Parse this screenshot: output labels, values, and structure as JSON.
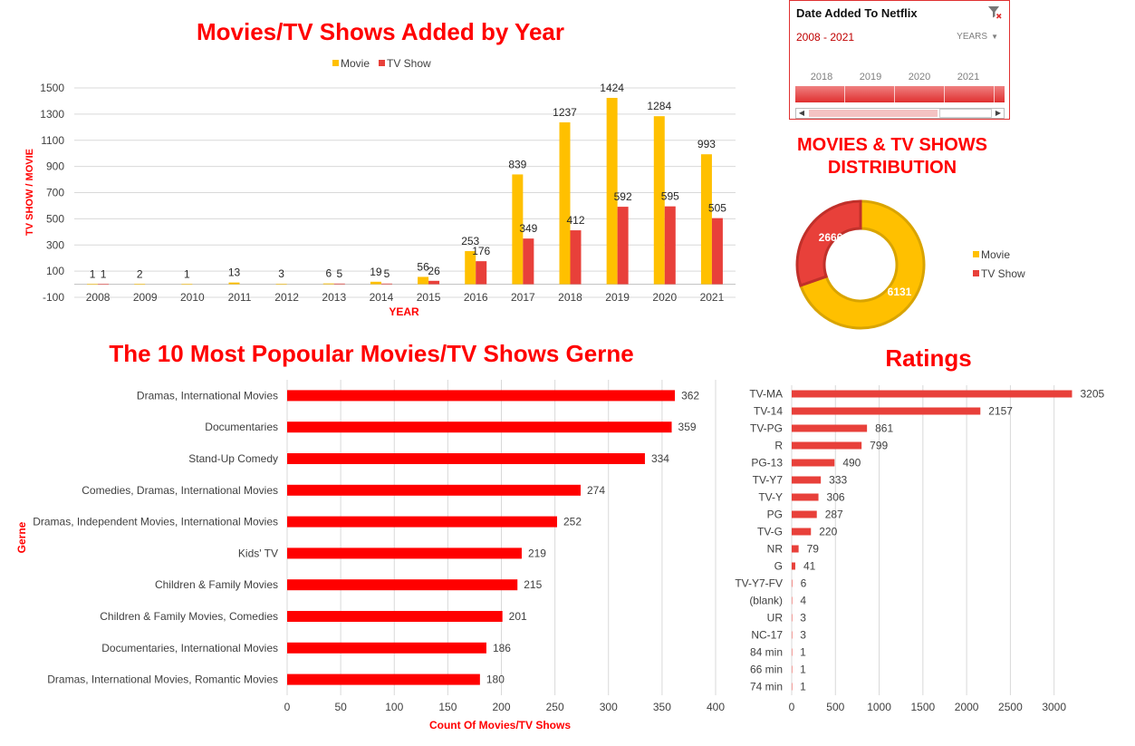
{
  "colors": {
    "movie": "#ffc000",
    "tvshow": "#e8403a",
    "title": "#ff0000",
    "bar_red": "#ff0000",
    "ratings_bar": "#e8403a"
  },
  "year_chart": {
    "title": "Movies/TV Shows Added by Year",
    "legend": [
      "Movie",
      "TV Show"
    ],
    "ylabel": "TV SHOW / MOVIE",
    "xlabel": "YEAR",
    "yticks": [
      "1500",
      "1300",
      "1100",
      "900",
      "700",
      "500",
      "300",
      "100",
      "-100"
    ]
  },
  "slicer": {
    "header": "Date Added To Netflix",
    "range": "2008 - 2021",
    "unit": "YEARS",
    "years": [
      "2018",
      "2019",
      "2020",
      "2021"
    ],
    "filter_icon": "clear-filter-icon"
  },
  "donut": {
    "title_line1": "MOVIES & TV SHOWS",
    "title_line2": "DISTRIBUTION",
    "legend": [
      "Movie",
      "TV Show"
    ]
  },
  "genre_chart": {
    "title": "The 10 Most Popoular Movies/TV Shows Gerne",
    "ylabel": "Gerne",
    "xlabel": "Count Of Movies/TV Shows"
  },
  "ratings_chart": {
    "title": "Ratings"
  },
  "chart_data": [
    {
      "type": "bar",
      "title": "Movies/TV Shows Added by Year",
      "xlabel": "YEAR",
      "ylabel": "TV SHOW / MOVIE",
      "ylim": [
        -100,
        1500
      ],
      "legend": "top-center",
      "categories": [
        "2008",
        "2009",
        "2010",
        "2011",
        "2012",
        "2013",
        "2014",
        "2015",
        "2016",
        "2017",
        "2018",
        "2019",
        "2020",
        "2021"
      ],
      "series": [
        {
          "name": "Movie",
          "values": [
            1,
            2,
            1,
            13,
            3,
            6,
            19,
            56,
            253,
            839,
            1237,
            1424,
            1284,
            993
          ]
        },
        {
          "name": "TV Show",
          "values": [
            1,
            null,
            null,
            null,
            null,
            5,
            5,
            26,
            176,
            349,
            412,
            592,
            595,
            505
          ]
        }
      ],
      "labels": {
        "Movie": [
          "1",
          "2",
          "1",
          "13",
          "3",
          "6",
          "19",
          "56",
          "253",
          "839",
          "1237",
          "1424",
          "1284",
          "993"
        ],
        "TV Show": [
          "1",
          "",
          "",
          "",
          "",
          "5",
          "5",
          "26",
          "176",
          "349",
          "412",
          "592",
          "595",
          "505"
        ]
      }
    },
    {
      "type": "pie",
      "title": "MOVIES & TV SHOWS DISTRIBUTION",
      "legend": "right",
      "slices": [
        {
          "name": "Movie",
          "value": 6131
        },
        {
          "name": "TV Show",
          "value": 2666
        }
      ]
    },
    {
      "type": "bar",
      "orientation": "horizontal",
      "title": "The 10 Most Popoular Movies/TV Shows Gerne",
      "xlabel": "Count Of Movies/TV Shows",
      "ylabel": "Gerne",
      "xlim": [
        0,
        400
      ],
      "xticks": [
        0,
        50,
        100,
        150,
        200,
        250,
        300,
        350,
        400
      ],
      "categories": [
        "Dramas, International Movies",
        "Documentaries",
        "Stand-Up Comedy",
        "Comedies, Dramas, International Movies",
        "Dramas, Independent Movies, International Movies",
        "Kids' TV",
        "Children & Family Movies",
        "Children & Family Movies, Comedies",
        "Documentaries, International Movies",
        "Dramas, International Movies, Romantic Movies"
      ],
      "values": [
        362,
        359,
        334,
        274,
        252,
        219,
        215,
        201,
        186,
        180
      ],
      "grid": true
    },
    {
      "type": "bar",
      "orientation": "horizontal",
      "title": "Ratings",
      "xlim": [
        0,
        3200
      ],
      "xticks": [
        0,
        500,
        1000,
        1500,
        2000,
        2500,
        3000
      ],
      "categories": [
        "TV-MA",
        "TV-14",
        "TV-PG",
        "R",
        "PG-13",
        "TV-Y7",
        "TV-Y",
        "PG",
        "TV-G",
        "NR",
        "G",
        "TV-Y7-FV",
        "(blank)",
        "UR",
        "NC-17",
        "84 min",
        "66 min",
        "74 min"
      ],
      "values": [
        3205,
        2157,
        861,
        799,
        490,
        333,
        306,
        287,
        220,
        79,
        41,
        6,
        4,
        3,
        3,
        1,
        1,
        1
      ],
      "grid": true
    }
  ]
}
